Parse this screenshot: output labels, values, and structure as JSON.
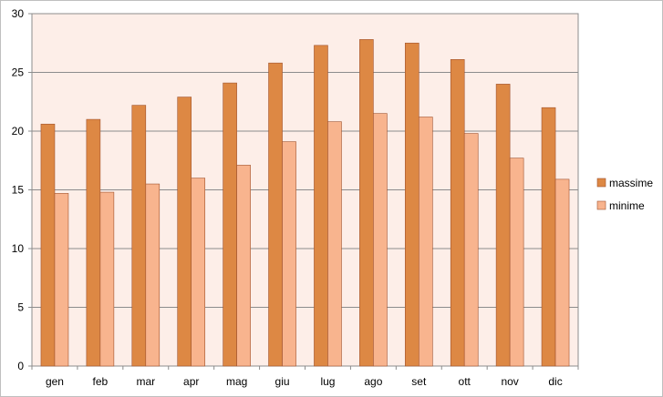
{
  "chart_data": {
    "type": "bar",
    "categories": [
      "gen",
      "feb",
      "mar",
      "apr",
      "mag",
      "giu",
      "lug",
      "ago",
      "set",
      "ott",
      "nov",
      "dic"
    ],
    "series": [
      {
        "name": "massime",
        "color": "#dd8844",
        "values": [
          20.6,
          21.0,
          22.2,
          22.9,
          24.1,
          25.8,
          27.3,
          27.8,
          27.5,
          26.1,
          24.0,
          22.0
        ]
      },
      {
        "name": "minime",
        "color": "#f8b48e",
        "values": [
          14.7,
          14.8,
          15.5,
          16.0,
          17.1,
          19.1,
          20.8,
          21.5,
          21.2,
          19.8,
          17.7,
          15.9
        ]
      }
    ],
    "y_ticks": [
      "0",
      "5",
      "10",
      "15",
      "20",
      "25",
      "30"
    ],
    "ylim": [
      0,
      30
    ],
    "grid": true,
    "legend_position": "right",
    "plot_background": "#fdeee8",
    "title": "",
    "xlabel": "",
    "ylabel": ""
  }
}
